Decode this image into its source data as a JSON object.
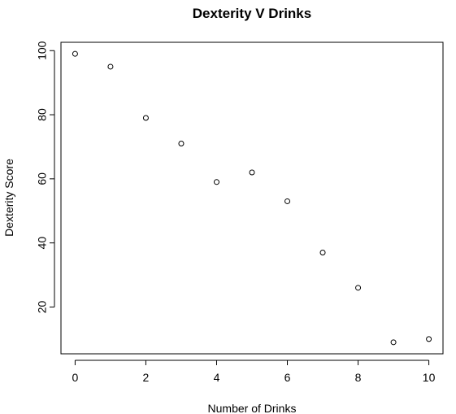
{
  "chart_data": {
    "type": "scatter",
    "title": "Dexterity V Drinks",
    "xlabel": "Number of Drinks",
    "ylabel": "Dexterity Score",
    "x": [
      0,
      1,
      2,
      3,
      4,
      5,
      6,
      7,
      8,
      9,
      10
    ],
    "y": [
      99,
      95,
      79,
      71,
      59,
      62,
      53,
      37,
      26,
      9,
      10
    ],
    "xlim": [
      -0.4,
      10.4
    ],
    "ylim": [
      5.4,
      102.6
    ],
    "xticks": [
      0,
      2,
      4,
      6,
      8,
      10
    ],
    "yticks": [
      20,
      40,
      60,
      80,
      100
    ],
    "grid": false,
    "legend": "none",
    "marker": "open-circle",
    "marker_color": "#000000"
  }
}
